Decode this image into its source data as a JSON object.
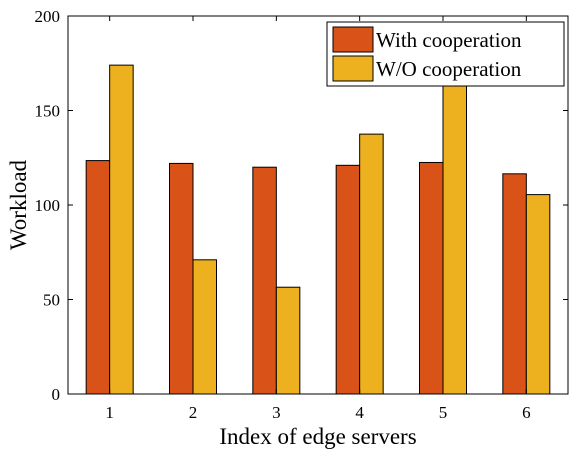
{
  "chart_data": {
    "type": "bar",
    "categories": [
      "1",
      "2",
      "3",
      "4",
      "5",
      "6"
    ],
    "series": [
      {
        "name": "With cooperation",
        "color": "#d95319",
        "values": [
          123.5,
          122,
          120,
          121,
          122.5,
          116.5
        ]
      },
      {
        "name": "W/O cooperation",
        "color": "#edb120",
        "values": [
          174,
          71,
          56.5,
          137.5,
          165,
          105.5
        ]
      }
    ],
    "xlabel": "Index of edge servers",
    "ylabel": "Workload",
    "ylim": [
      0,
      200
    ],
    "yticks": [
      "0",
      "50",
      "100",
      "150",
      "200"
    ],
    "grid": false,
    "legend": "top-right"
  }
}
